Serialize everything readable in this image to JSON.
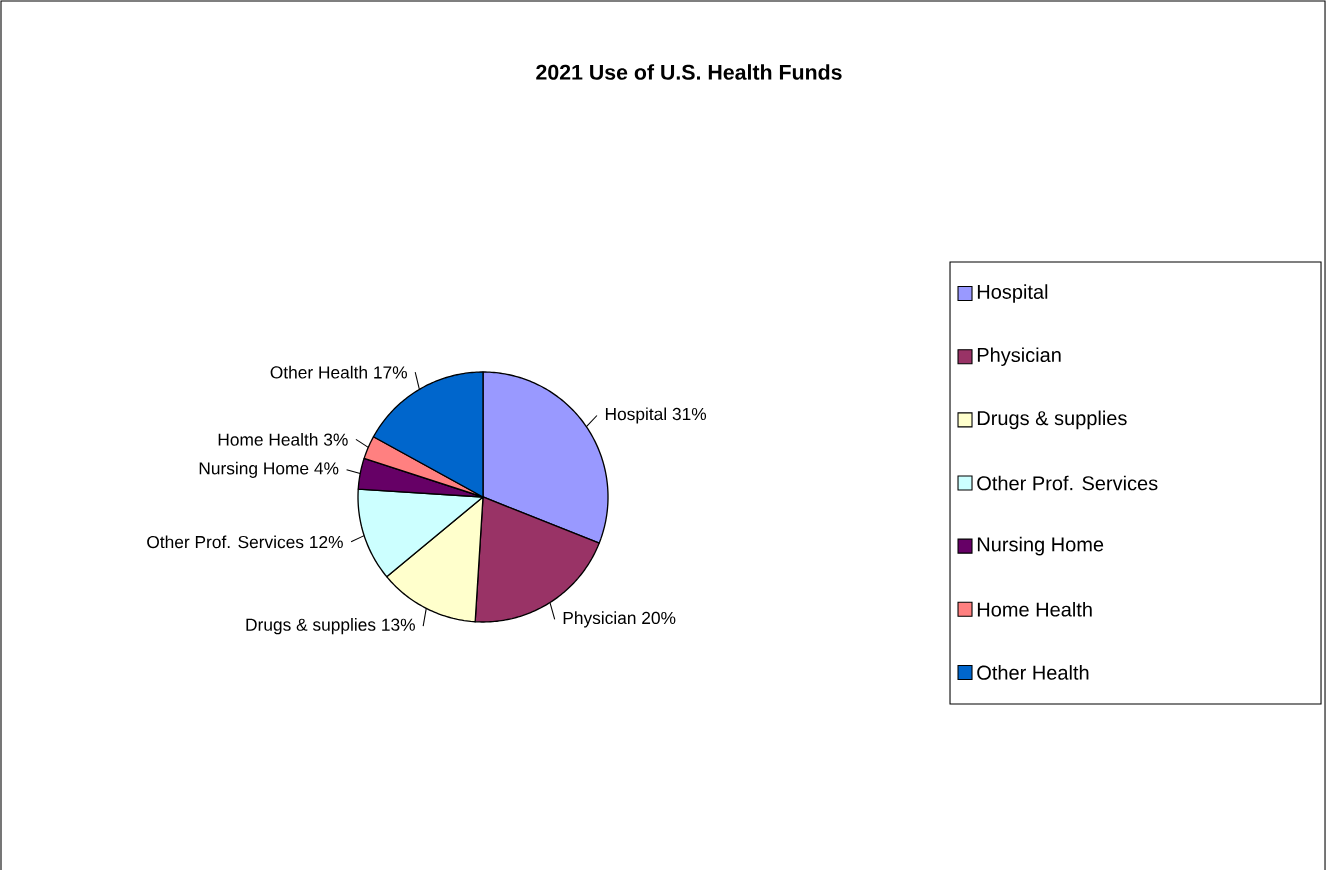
{
  "chart_data": {
    "type": "pie",
    "title": "2021 Use of U.S. Health Funds",
    "categories": [
      "Hospital",
      "Physician",
      "Drugs & supplies",
      "Other Prof. Services",
      "Nursing Home",
      "Home Health",
      "Other Health"
    ],
    "values": [
      31,
      20,
      13,
      12,
      4,
      3,
      17
    ],
    "value_labels": [
      "31%",
      "20%",
      "13%",
      "12%",
      "4%",
      "3%",
      "17%"
    ],
    "colors": [
      "#9999ff",
      "#993366",
      "#ffffcc",
      "#ccffff",
      "#660066",
      "#ff8080",
      "#0066cc"
    ],
    "legend": "right"
  }
}
